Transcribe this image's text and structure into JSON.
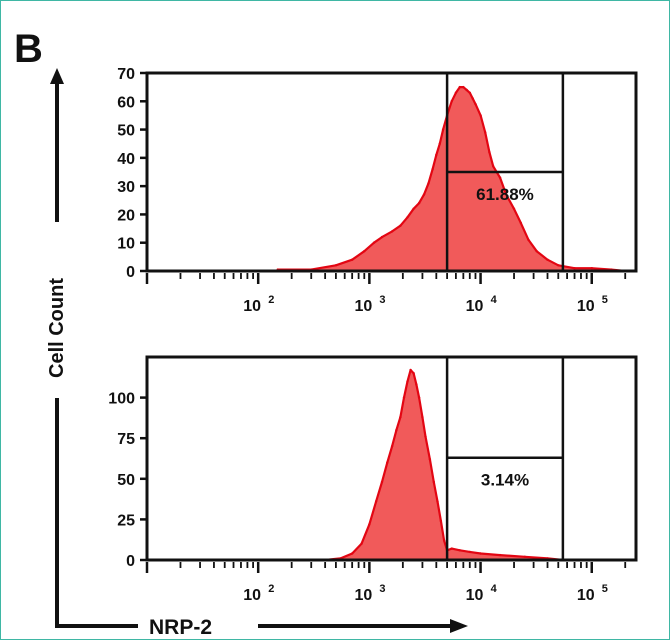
{
  "figure": {
    "panel_label": "B",
    "y_axis_label": "Cell Count",
    "x_axis_label": "NRP-2"
  },
  "colors": {
    "fill": "#f15a5a",
    "edge": "#e30613",
    "frame_border": "#3fb7a4",
    "axis": "#111111"
  },
  "chart_data": [
    {
      "type": "area",
      "scale_x": "log",
      "xlim": [
        10,
        250000
      ],
      "ylim": [
        0,
        70
      ],
      "yticks": [
        0,
        10,
        20,
        30,
        40,
        50,
        60,
        70
      ],
      "xticks": [
        {
          "value": 100,
          "label": "10",
          "exp": "2"
        },
        {
          "value": 1000,
          "label": "10",
          "exp": "3"
        },
        {
          "value": 10000,
          "label": "10",
          "exp": "4"
        },
        {
          "value": 100000,
          "label": "10",
          "exp": "5"
        }
      ],
      "gate": {
        "x1": 5000,
        "x2": 55000,
        "y": 35,
        "label": "61.88%"
      },
      "x": [
        150,
        300,
        500,
        700,
        900,
        1100,
        1300,
        1600,
        1900,
        2200,
        2500,
        2800,
        3100,
        3400,
        3700,
        4000,
        4300,
        4600,
        5000,
        5500,
        6000,
        6500,
        7000,
        7500,
        8000,
        8500,
        9000,
        10000,
        11000,
        12000,
        13000,
        15000,
        17000,
        20000,
        23000,
        27000,
        32000,
        40000,
        50000,
        70000,
        100000,
        150000,
        200000
      ],
      "y": [
        0.5,
        0.5,
        2,
        4,
        7,
        10,
        12,
        14,
        16,
        19,
        22,
        24,
        27,
        31,
        36,
        41,
        45,
        50,
        55,
        60,
        63,
        65,
        65,
        64,
        63,
        61,
        59,
        55,
        49,
        42,
        37,
        33,
        27,
        22,
        17,
        11,
        7,
        4,
        2,
        1,
        1,
        0.5,
        0
      ]
    },
    {
      "type": "area",
      "scale_x": "log",
      "xlim": [
        10,
        250000
      ],
      "ylim": [
        0,
        125
      ],
      "yticks": [
        0,
        25,
        50,
        75,
        100
      ],
      "xticks": [
        {
          "value": 100,
          "label": "10",
          "exp": "2"
        },
        {
          "value": 1000,
          "label": "10",
          "exp": "3"
        },
        {
          "value": 10000,
          "label": "10",
          "exp": "4"
        },
        {
          "value": 100000,
          "label": "10",
          "exp": "5"
        }
      ],
      "gate": {
        "x1": 5000,
        "x2": 55000,
        "y": 63,
        "label": "3.14%"
      },
      "x": [
        400,
        550,
        700,
        850,
        1000,
        1150,
        1300,
        1450,
        1600,
        1750,
        1900,
        2050,
        2200,
        2350,
        2500,
        2650,
        2800,
        3000,
        3200,
        3500,
        3800,
        4100,
        4400,
        4700,
        5000,
        5500,
        6500,
        8000,
        10000,
        15000,
        25000,
        40000,
        55000
      ],
      "y": [
        0,
        1,
        4,
        10,
        22,
        36,
        48,
        60,
        70,
        80,
        88,
        100,
        110,
        117,
        115,
        108,
        100,
        88,
        76,
        62,
        48,
        36,
        24,
        12,
        6,
        7,
        6,
        5,
        4,
        3,
        2,
        1,
        0
      ]
    }
  ]
}
